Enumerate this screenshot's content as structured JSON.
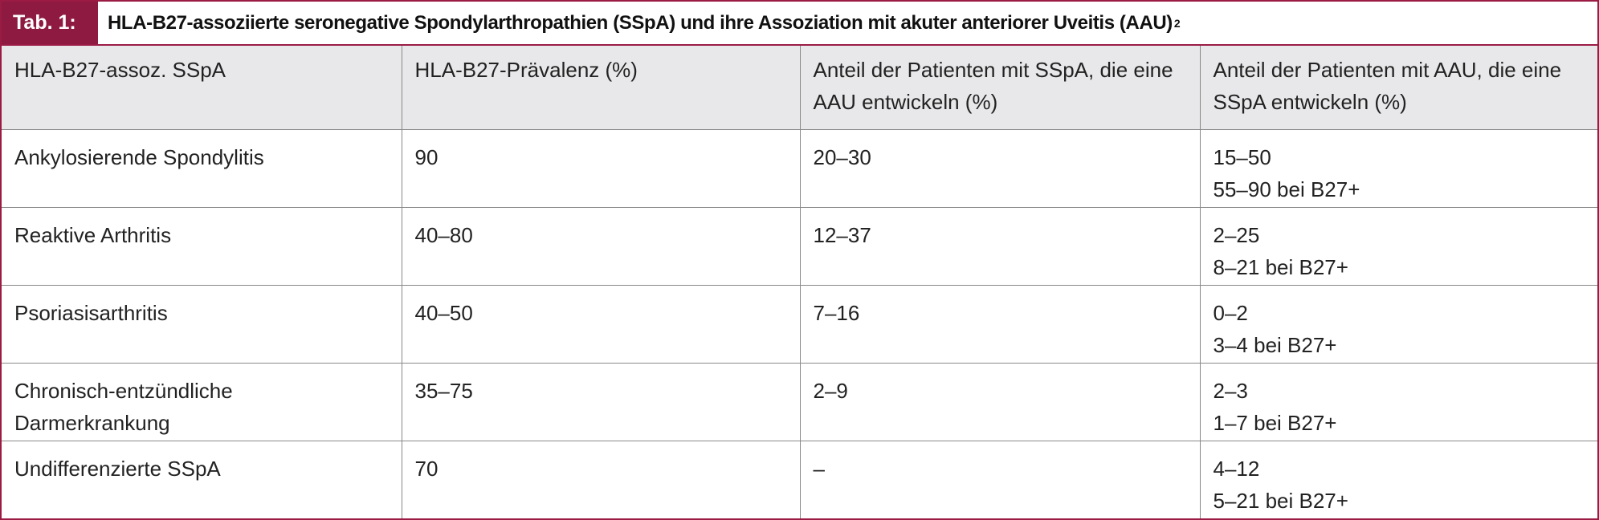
{
  "table": {
    "label": "Tab. 1:",
    "title": "HLA-B27-assoziierte seronegative Spondylarthropathien (SSpA) und ihre Assoziation mit akuter anteriorer Uveitis (AAU)",
    "title_ref": "2",
    "header": [
      "HLA-B27-assoz. SSpA",
      "HLA-B27-Prävalenz (%)",
      "Anteil der Patienten mit SSpA, die eine AAU entwickeln (%)",
      "Anteil der Patienten mit AAU, die eine SSpA entwickeln (%)"
    ],
    "rows": [
      [
        [
          "Ankylosierende Spondylitis"
        ],
        [
          "90"
        ],
        [
          "20–30"
        ],
        [
          "15–50",
          "55–90 bei B27+"
        ]
      ],
      [
        [
          "Reaktive Arthritis"
        ],
        [
          "40–80"
        ],
        [
          "12–37"
        ],
        [
          "2–25",
          "8–21 bei B27+"
        ]
      ],
      [
        [
          "Psoriasisarthritis"
        ],
        [
          "40–50"
        ],
        [
          "7–16"
        ],
        [
          "0–2",
          "3–4 bei B27+"
        ]
      ],
      [
        [
          "Chronisch-entzündliche",
          "Darmerkrankung"
        ],
        [
          "35–75"
        ],
        [
          "2–9"
        ],
        [
          "2–3",
          "1–7 bei B27+"
        ]
      ],
      [
        [
          "Undifferenzierte SSpA"
        ],
        [
          "70"
        ],
        [
          "–"
        ],
        [
          "4–12",
          "5–21 bei B27+"
        ]
      ]
    ]
  }
}
